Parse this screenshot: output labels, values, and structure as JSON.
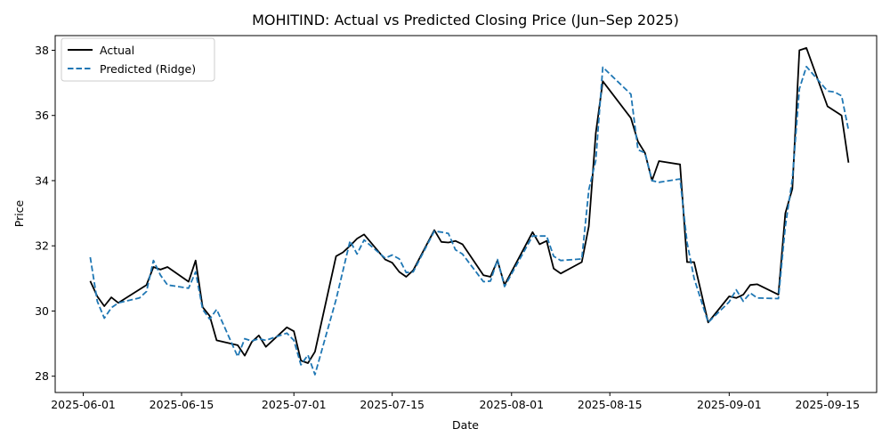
{
  "chart_data": {
    "type": "line",
    "title": "MOHITIND: Actual vs Predicted Closing Price (Jun–Sep 2025)",
    "xlabel": "Date",
    "ylabel": "Price",
    "x_ticks": [
      "2025-06-01",
      "2025-06-15",
      "2025-07-01",
      "2025-07-15",
      "2025-08-01",
      "2025-08-15",
      "2025-09-01",
      "2025-09-15"
    ],
    "y_ticks": [
      28,
      30,
      32,
      34,
      36,
      38
    ],
    "xlim": [
      "2025-05-28",
      "2025-09-22"
    ],
    "ylim": [
      27.5,
      38.45
    ],
    "legend_position": "top-left",
    "grid": false,
    "series": [
      {
        "name": "Actual",
        "color": "#000000",
        "dash": "solid",
        "points": [
          [
            "2025-06-02",
            30.92
          ],
          [
            "2025-06-03",
            30.45
          ],
          [
            "2025-06-04",
            30.15
          ],
          [
            "2025-06-05",
            30.42
          ],
          [
            "2025-06-06",
            30.25
          ],
          [
            "2025-06-10",
            30.8
          ],
          [
            "2025-06-11",
            31.35
          ],
          [
            "2025-06-12",
            31.27
          ],
          [
            "2025-06-13",
            31.35
          ],
          [
            "2025-06-16",
            30.9
          ],
          [
            "2025-06-17",
            31.55
          ],
          [
            "2025-06-18",
            30.12
          ],
          [
            "2025-06-19",
            29.85
          ],
          [
            "2025-06-20",
            29.1
          ],
          [
            "2025-06-23",
            28.95
          ],
          [
            "2025-06-24",
            28.63
          ],
          [
            "2025-06-25",
            29.05
          ],
          [
            "2025-06-26",
            29.25
          ],
          [
            "2025-06-27",
            28.9
          ],
          [
            "2025-06-30",
            29.5
          ],
          [
            "2025-07-01",
            29.38
          ],
          [
            "2025-07-02",
            28.48
          ],
          [
            "2025-07-03",
            28.4
          ],
          [
            "2025-07-04",
            28.75
          ],
          [
            "2025-07-07",
            31.68
          ],
          [
            "2025-07-08",
            31.8
          ],
          [
            "2025-07-09",
            32.0
          ],
          [
            "2025-07-10",
            32.22
          ],
          [
            "2025-07-11",
            32.35
          ],
          [
            "2025-07-14",
            31.58
          ],
          [
            "2025-07-15",
            31.48
          ],
          [
            "2025-07-16",
            31.2
          ],
          [
            "2025-07-17",
            31.05
          ],
          [
            "2025-07-18",
            31.25
          ],
          [
            "2025-07-21",
            32.48
          ],
          [
            "2025-07-22",
            32.12
          ],
          [
            "2025-07-23",
            32.1
          ],
          [
            "2025-07-24",
            32.15
          ],
          [
            "2025-07-25",
            32.05
          ],
          [
            "2025-07-28",
            31.1
          ],
          [
            "2025-07-29",
            31.05
          ],
          [
            "2025-07-30",
            31.55
          ],
          [
            "2025-07-31",
            30.8
          ],
          [
            "2025-08-04",
            32.42
          ],
          [
            "2025-08-05",
            32.05
          ],
          [
            "2025-08-06",
            32.15
          ],
          [
            "2025-08-07",
            31.3
          ],
          [
            "2025-08-08",
            31.15
          ],
          [
            "2025-08-11",
            31.5
          ],
          [
            "2025-08-12",
            32.6
          ],
          [
            "2025-08-13",
            35.45
          ],
          [
            "2025-08-14",
            37.05
          ],
          [
            "2025-08-18",
            35.92
          ],
          [
            "2025-08-19",
            35.2
          ],
          [
            "2025-08-20",
            34.85
          ],
          [
            "2025-08-21",
            34.0
          ],
          [
            "2025-08-22",
            34.6
          ],
          [
            "2025-08-25",
            34.5
          ],
          [
            "2025-08-26",
            31.5
          ],
          [
            "2025-08-27",
            31.5
          ],
          [
            "2025-08-29",
            29.65
          ],
          [
            "2025-09-01",
            30.45
          ],
          [
            "2025-09-02",
            30.4
          ],
          [
            "2025-09-03",
            30.5
          ],
          [
            "2025-09-04",
            30.8
          ],
          [
            "2025-09-05",
            30.82
          ],
          [
            "2025-09-08",
            30.5
          ],
          [
            "2025-09-09",
            33.0
          ],
          [
            "2025-09-10",
            33.75
          ],
          [
            "2025-09-11",
            38.0
          ],
          [
            "2025-09-12",
            38.07
          ],
          [
            "2025-09-15",
            36.28
          ],
          [
            "2025-09-17",
            36.0
          ],
          [
            "2025-09-18",
            34.55
          ]
        ]
      },
      {
        "name": "Predicted (Ridge)",
        "color": "#1f77b4",
        "dash": "dashed",
        "points": [
          [
            "2025-06-02",
            31.65
          ],
          [
            "2025-06-03",
            30.3
          ],
          [
            "2025-06-04",
            29.78
          ],
          [
            "2025-06-05",
            30.1
          ],
          [
            "2025-06-06",
            30.25
          ],
          [
            "2025-06-09",
            30.4
          ],
          [
            "2025-06-10",
            30.6
          ],
          [
            "2025-06-11",
            31.55
          ],
          [
            "2025-06-12",
            31.1
          ],
          [
            "2025-06-13",
            30.8
          ],
          [
            "2025-06-16",
            30.7
          ],
          [
            "2025-06-17",
            31.2
          ],
          [
            "2025-06-18",
            30.05
          ],
          [
            "2025-06-19",
            29.75
          ],
          [
            "2025-06-20",
            30.05
          ],
          [
            "2025-06-23",
            28.6
          ],
          [
            "2025-06-24",
            29.15
          ],
          [
            "2025-06-25",
            29.08
          ],
          [
            "2025-06-26",
            29.15
          ],
          [
            "2025-06-27",
            29.1
          ],
          [
            "2025-06-30",
            29.32
          ],
          [
            "2025-07-01",
            29.1
          ],
          [
            "2025-07-02",
            28.35
          ],
          [
            "2025-07-03",
            28.65
          ],
          [
            "2025-07-04",
            28.05
          ],
          [
            "2025-07-07",
            30.35
          ],
          [
            "2025-07-09",
            32.15
          ],
          [
            "2025-07-10",
            31.75
          ],
          [
            "2025-07-11",
            32.18
          ],
          [
            "2025-07-14",
            31.62
          ],
          [
            "2025-07-15",
            31.72
          ],
          [
            "2025-07-16",
            31.6
          ],
          [
            "2025-07-17",
            31.18
          ],
          [
            "2025-07-18",
            31.2
          ],
          [
            "2025-07-21",
            32.45
          ],
          [
            "2025-07-22",
            32.42
          ],
          [
            "2025-07-23",
            32.38
          ],
          [
            "2025-07-24",
            31.88
          ],
          [
            "2025-07-25",
            31.75
          ],
          [
            "2025-07-28",
            30.9
          ],
          [
            "2025-07-29",
            30.92
          ],
          [
            "2025-07-30",
            31.58
          ],
          [
            "2025-07-31",
            30.75
          ],
          [
            "2025-08-04",
            32.3
          ],
          [
            "2025-08-06",
            32.3
          ],
          [
            "2025-08-07",
            31.68
          ],
          [
            "2025-08-08",
            31.55
          ],
          [
            "2025-08-11",
            31.6
          ],
          [
            "2025-08-12",
            33.72
          ],
          [
            "2025-08-13",
            34.62
          ],
          [
            "2025-08-14",
            37.48
          ],
          [
            "2025-08-18",
            36.65
          ],
          [
            "2025-08-19",
            34.95
          ],
          [
            "2025-08-20",
            34.85
          ],
          [
            "2025-08-21",
            34.0
          ],
          [
            "2025-08-22",
            33.95
          ],
          [
            "2025-08-25",
            34.05
          ],
          [
            "2025-08-26",
            32.1
          ],
          [
            "2025-08-27",
            31.0
          ],
          [
            "2025-08-29",
            29.65
          ],
          [
            "2025-09-01",
            30.28
          ],
          [
            "2025-09-02",
            30.65
          ],
          [
            "2025-09-03",
            30.3
          ],
          [
            "2025-09-04",
            30.55
          ],
          [
            "2025-09-05",
            30.4
          ],
          [
            "2025-09-08",
            30.38
          ],
          [
            "2025-09-09",
            32.6
          ],
          [
            "2025-09-10",
            34.05
          ],
          [
            "2025-09-11",
            36.82
          ],
          [
            "2025-09-12",
            37.5
          ],
          [
            "2025-09-15",
            36.75
          ],
          [
            "2025-09-16",
            36.72
          ],
          [
            "2025-09-17",
            36.6
          ],
          [
            "2025-09-18",
            35.55
          ]
        ]
      }
    ]
  }
}
